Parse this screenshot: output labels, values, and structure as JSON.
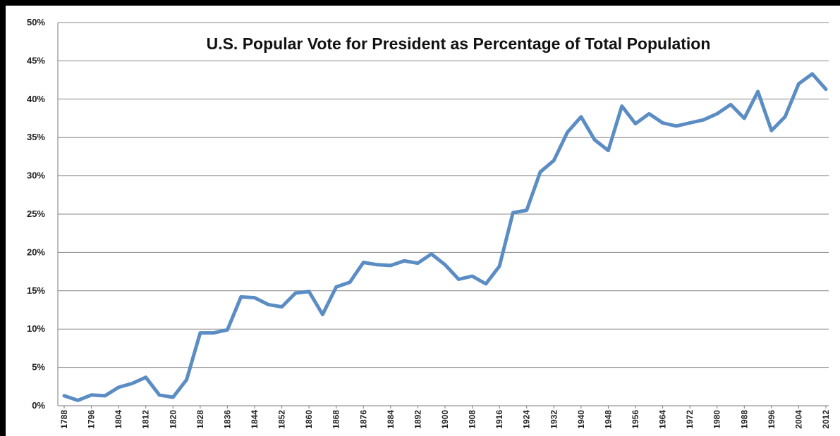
{
  "chart_data": {
    "type": "line",
    "title": "U.S. Popular Vote for President as Percentage of Total Population",
    "xlabel": "",
    "ylabel": "",
    "ylim": [
      0,
      50
    ],
    "y_ticks": [
      "0%",
      "5%",
      "10%",
      "15%",
      "20%",
      "25%",
      "30%",
      "35%",
      "40%",
      "45%",
      "50%"
    ],
    "grid": "horizontal",
    "legend": "none",
    "line_color": "#5b8dc4",
    "x": [
      1788,
      1792,
      1796,
      1800,
      1804,
      1808,
      1812,
      1816,
      1820,
      1824,
      1828,
      1832,
      1836,
      1840,
      1844,
      1848,
      1852,
      1856,
      1860,
      1864,
      1868,
      1872,
      1876,
      1880,
      1884,
      1888,
      1892,
      1896,
      1900,
      1904,
      1908,
      1912,
      1916,
      1920,
      1924,
      1928,
      1932,
      1936,
      1940,
      1944,
      1948,
      1952,
      1956,
      1960,
      1964,
      1968,
      1972,
      1976,
      1980,
      1984,
      1988,
      1992,
      1996,
      2000,
      2004,
      2008,
      2012
    ],
    "x_tick_labels": [
      "1788",
      "1796",
      "1804",
      "1812",
      "1820",
      "1828",
      "1836",
      "1844",
      "1852",
      "1860",
      "1868",
      "1876",
      "1884",
      "1892",
      "1900",
      "1908",
      "1916",
      "1924",
      "1932",
      "1940",
      "1948",
      "1956",
      "1964",
      "1972",
      "1980",
      "1988",
      "1996",
      "2004",
      "2012"
    ],
    "series": [
      {
        "values": [
          1.3,
          0.7,
          1.4,
          1.3,
          2.4,
          2.9,
          3.7,
          1.4,
          1.1,
          3.4,
          9.5,
          9.5,
          9.9,
          14.2,
          14.1,
          13.2,
          12.9,
          14.7,
          14.9,
          11.9,
          15.5,
          16.1,
          18.7,
          18.4,
          18.3,
          18.9,
          18.6,
          19.8,
          18.4,
          16.5,
          16.9,
          15.9,
          18.2,
          25.2,
          25.5,
          30.5,
          32.0,
          35.7,
          37.7,
          34.7,
          33.3,
          39.1,
          36.8,
          38.1,
          36.9,
          36.5,
          36.9,
          37.3,
          38.1,
          39.3,
          37.5,
          41.0,
          35.9,
          37.7,
          42.0,
          43.3,
          41.3
        ]
      }
    ]
  }
}
